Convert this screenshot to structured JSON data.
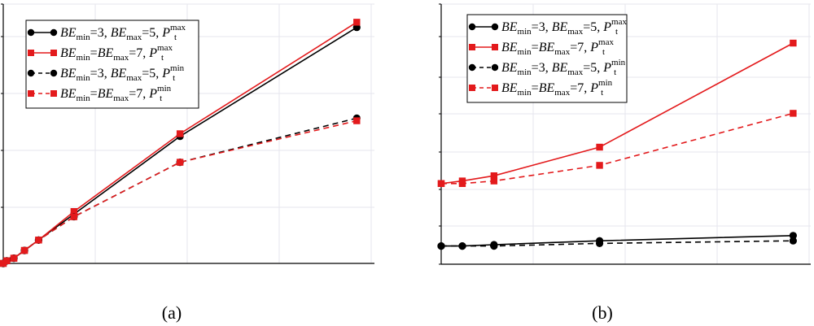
{
  "chart_data": [
    {
      "type": "line",
      "caption": "(a)",
      "grid": true,
      "legend": "top-left",
      "x": [
        0,
        0.1,
        0.3,
        0.6,
        1,
        2,
        5,
        10
      ],
      "xlim": [
        0,
        10.5
      ],
      "ylim": [
        0,
        1
      ],
      "series": [
        {
          "name": "BE_min=3, BE_max=5, P_t^max",
          "color": "#000000",
          "dash": "solid",
          "marker": "circle",
          "values": [
            0.0,
            0.01,
            0.02,
            0.05,
            0.09,
            0.19,
            0.49,
            0.91
          ]
        },
        {
          "name": "BE_min=BE_max=7, P_t^max",
          "color": "#e31a1c",
          "dash": "solid",
          "marker": "square",
          "values": [
            0.0,
            0.01,
            0.02,
            0.05,
            0.09,
            0.2,
            0.5,
            0.93
          ]
        },
        {
          "name": "BE_min=3, BE_max=5, P_t^min",
          "color": "#000000",
          "dash": "dashed",
          "marker": "circle",
          "values": [
            0.0,
            0.01,
            0.02,
            0.05,
            0.09,
            0.18,
            0.39,
            0.56
          ]
        },
        {
          "name": "BE_min=BE_max=7, P_t^min",
          "color": "#e31a1c",
          "dash": "dashed",
          "marker": "square",
          "values": [
            0.0,
            0.01,
            0.02,
            0.05,
            0.09,
            0.18,
            0.39,
            0.55
          ]
        }
      ]
    },
    {
      "type": "line",
      "caption": "(b)",
      "grid": true,
      "legend": "top-left",
      "x": [
        0,
        0.6,
        1.5,
        4.5,
        10
      ],
      "xlim": [
        0,
        10.5
      ],
      "ylim": [
        0,
        1
      ],
      "series": [
        {
          "name": "BE_min=3, BE_max=5, P_t^max",
          "color": "#000000",
          "dash": "solid",
          "marker": "circle",
          "values": [
            0.07,
            0.07,
            0.075,
            0.09,
            0.11
          ]
        },
        {
          "name": "BE_min=BE_max=7, P_t^max",
          "color": "#e31a1c",
          "dash": "solid",
          "marker": "square",
          "values": [
            0.31,
            0.32,
            0.34,
            0.45,
            0.85
          ]
        },
        {
          "name": "BE_min=3, BE_max=5, P_t^min",
          "color": "#000000",
          "dash": "dashed",
          "marker": "circle",
          "values": [
            0.07,
            0.07,
            0.07,
            0.08,
            0.09
          ]
        },
        {
          "name": "BE_min=BE_max=7, P_t^min",
          "color": "#e31a1c",
          "dash": "dashed",
          "marker": "square",
          "values": [
            0.31,
            0.31,
            0.32,
            0.38,
            0.58
          ]
        }
      ]
    }
  ],
  "legend_entries": [
    {
      "a": "BE",
      "a_sub": "min",
      "mid": "=3, ",
      "b": "BE",
      "b_sub": "max",
      "end": "=5, ",
      "p": "P",
      "p_sub": "t",
      "p_sup": "max"
    },
    {
      "a": "BE",
      "a_sub": "min",
      "mid": "=",
      "b": "BE",
      "b_sub": "max",
      "end": "=7, ",
      "p": "P",
      "p_sub": "t",
      "p_sup": "max"
    },
    {
      "a": "BE",
      "a_sub": "min",
      "mid": "=3, ",
      "b": "BE",
      "b_sub": "max",
      "end": "=5, ",
      "p": "P",
      "p_sub": "t",
      "p_sup": "min"
    },
    {
      "a": "BE",
      "a_sub": "min",
      "mid": "=",
      "b": "BE",
      "b_sub": "max",
      "end": "=7, ",
      "p": "P",
      "p_sub": "t",
      "p_sup": "min"
    }
  ]
}
